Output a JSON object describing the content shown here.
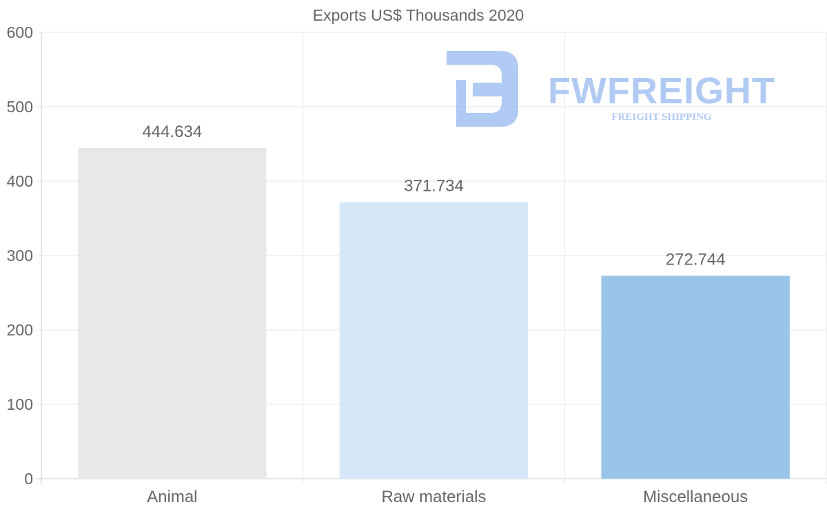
{
  "chart_data": {
    "type": "bar",
    "title": "Exports US$ Thousands 2020",
    "categories": [
      "Animal",
      "Raw materials",
      "Miscellaneous"
    ],
    "values": [
      444.634,
      371.734,
      272.744
    ],
    "data_labels": [
      "444.634",
      "371.734",
      "272.744"
    ],
    "bar_colors": [
      "#e8e8e8",
      "#d6e8f8",
      "#9ac4e8"
    ],
    "ylim": [
      0,
      600
    ],
    "yticks": [
      0,
      100,
      200,
      300,
      400,
      500,
      600
    ],
    "ytick_labels": [
      "0",
      "100",
      "200",
      "300",
      "400",
      "500",
      "600"
    ],
    "xlabel": "",
    "ylabel": "",
    "grid": true
  },
  "watermark": {
    "brand": "FWFREIGHT",
    "tagline": "FREIGHT SHIPPING",
    "color": "#8fb4ee"
  },
  "colors": {
    "text": "#666666",
    "grid": "#e6e6e6",
    "axis": "#cccccc"
  }
}
